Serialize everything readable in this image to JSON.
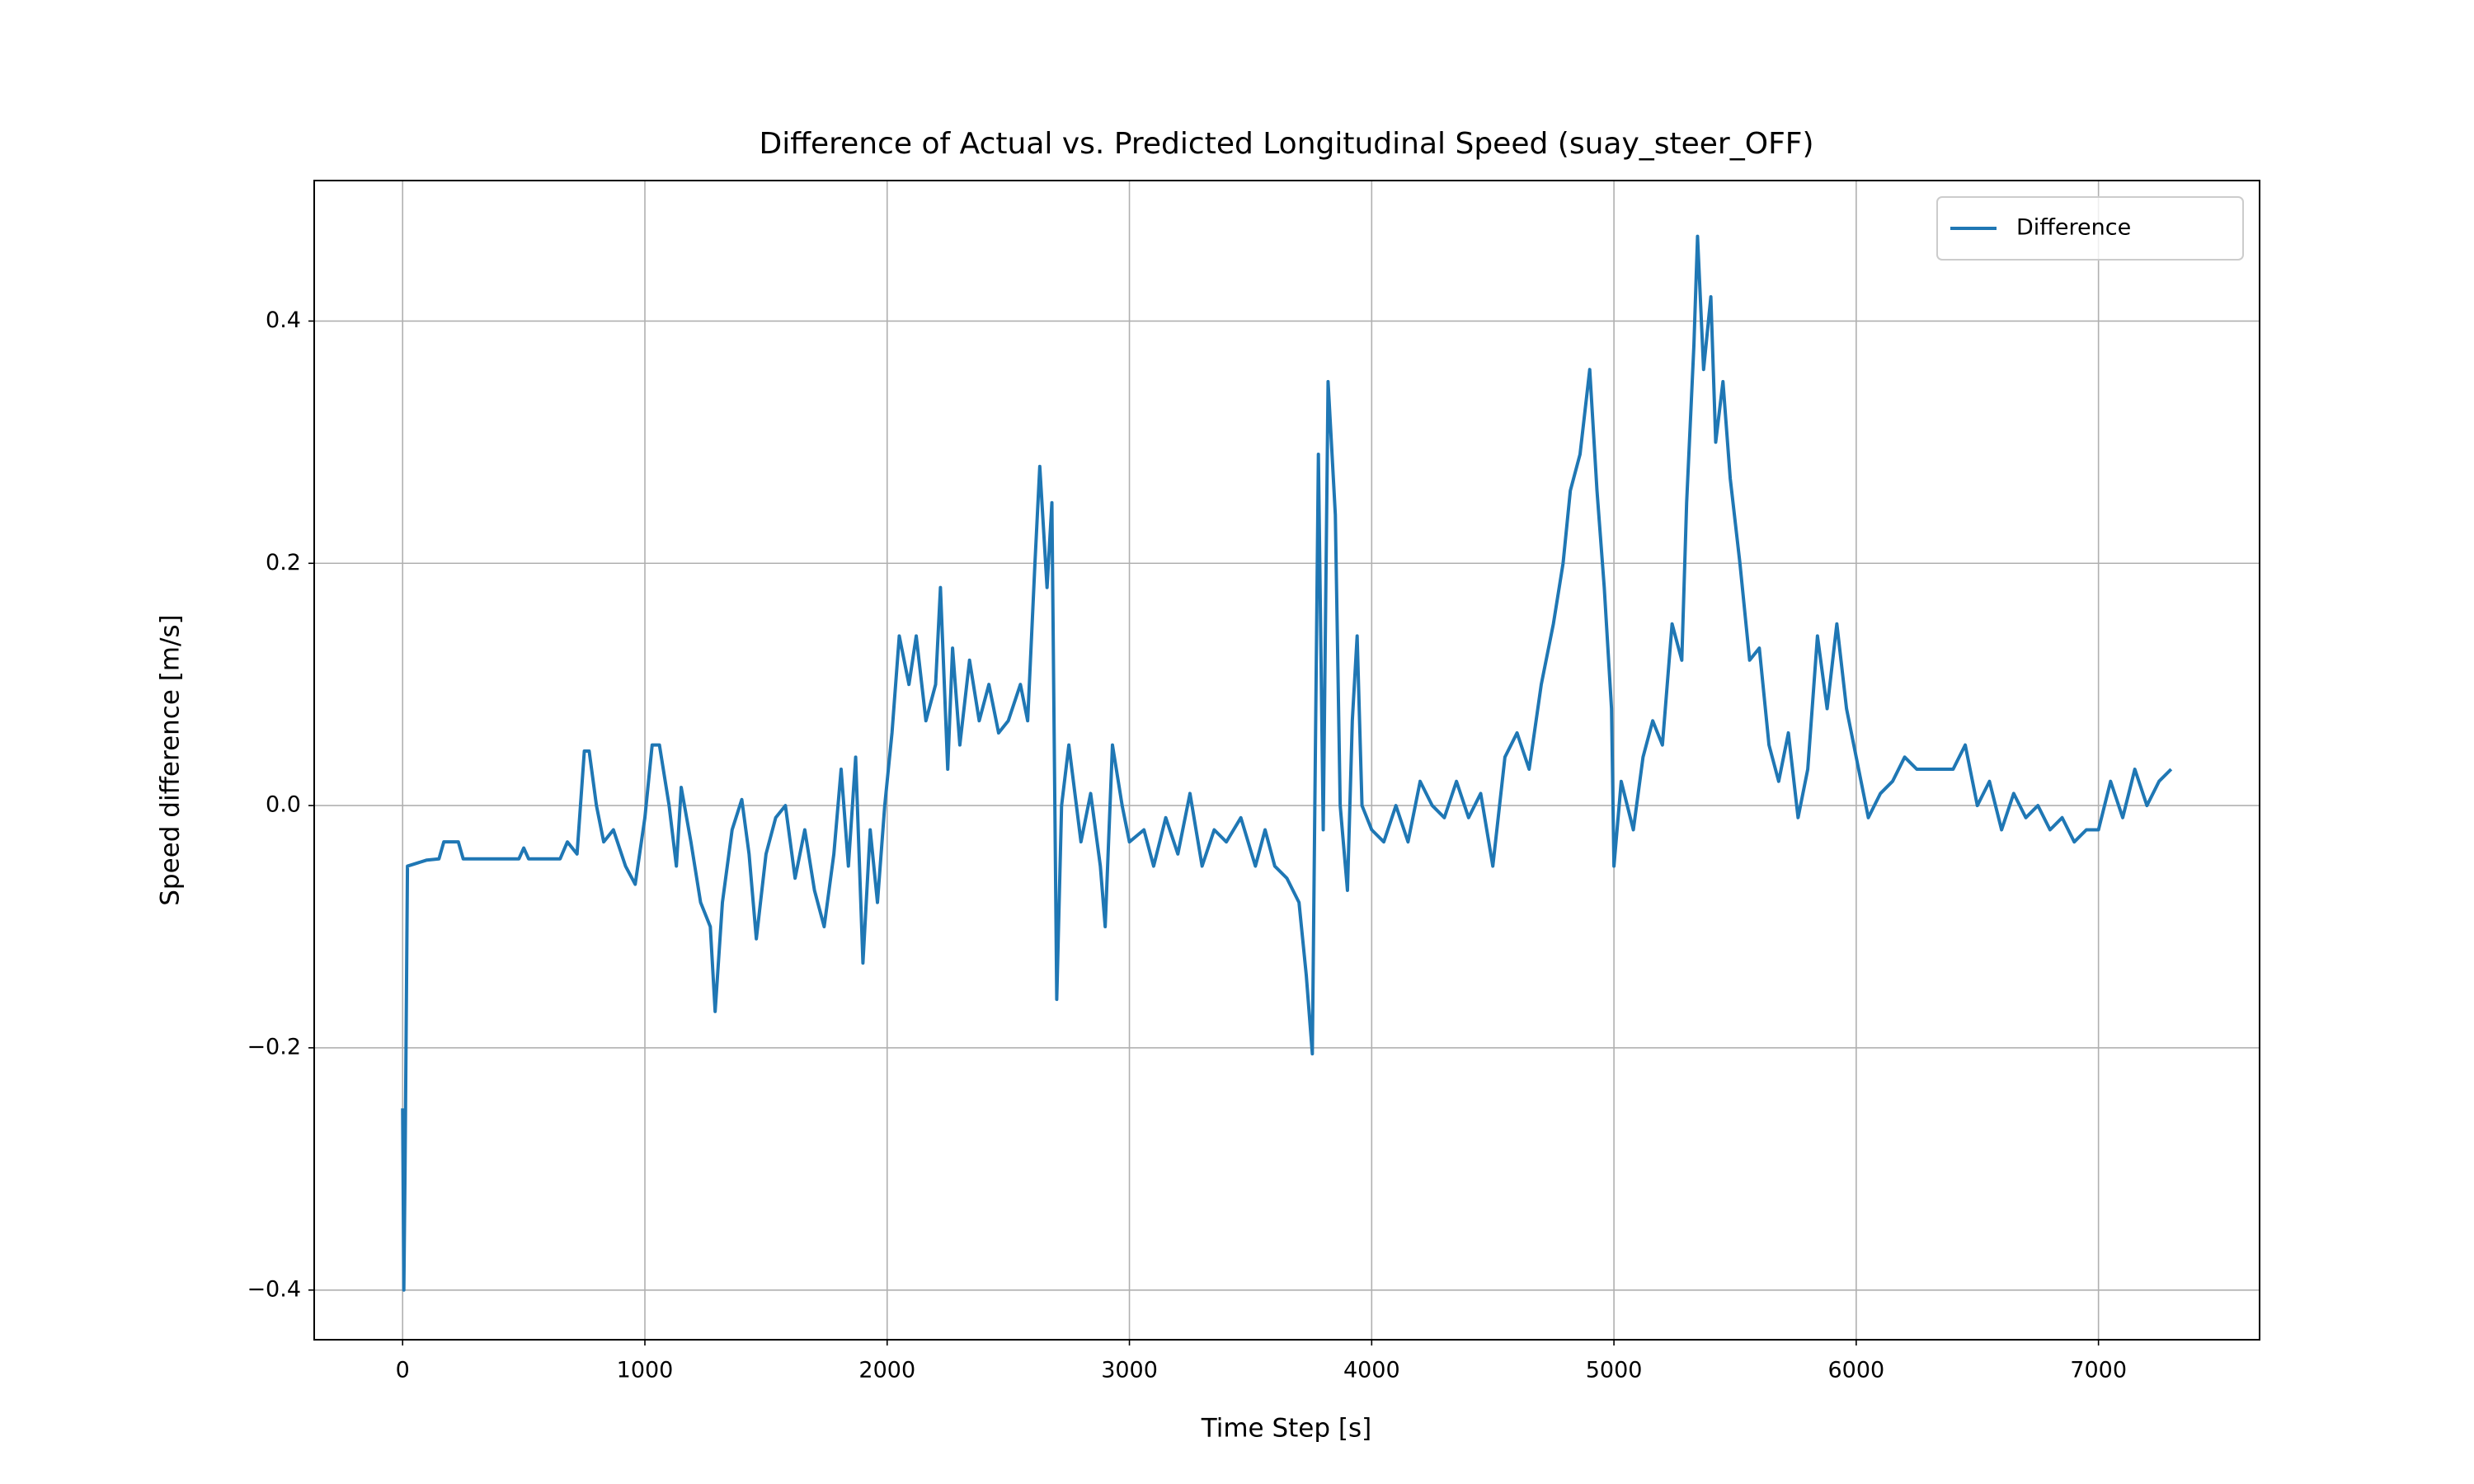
{
  "chart_data": {
    "type": "line",
    "title": "Difference of Actual vs. Predicted Longitudinal Speed (suay_steer_OFF)",
    "xlabel": "Time Step [s]",
    "ylabel": "Speed difference [m/s]",
    "xlim": [
      -365,
      7665
    ],
    "ylim": [
      -0.441,
      0.516
    ],
    "xticks": [
      0,
      1000,
      2000,
      3000,
      4000,
      5000,
      6000,
      7000
    ],
    "yticks": [
      {
        "value": -0.4,
        "label": "−0.4"
      },
      {
        "value": -0.2,
        "label": "−0.2"
      },
      {
        "value": 0,
        "label": "0.0"
      },
      0.2,
      0.4
    ],
    "grid": true,
    "legend": "upper right",
    "x": [
      0,
      5,
      10,
      20,
      100,
      150,
      170,
      230,
      250,
      480,
      500,
      520,
      650,
      680,
      720,
      750,
      770,
      800,
      830,
      870,
      920,
      960,
      1000,
      1030,
      1060,
      1100,
      1130,
      1150,
      1190,
      1230,
      1270,
      1290,
      1320,
      1360,
      1400,
      1430,
      1460,
      1500,
      1540,
      1580,
      1620,
      1660,
      1700,
      1740,
      1780,
      1810,
      1840,
      1870,
      1900,
      1930,
      1960,
      1990,
      2020,
      2050,
      2090,
      2120,
      2160,
      2200,
      2220,
      2250,
      2270,
      2300,
      2340,
      2380,
      2420,
      2460,
      2500,
      2550,
      2580,
      2610,
      2630,
      2660,
      2680,
      2700,
      2720,
      2750,
      2800,
      2840,
      2880,
      2900,
      2930,
      2970,
      3000,
      3060,
      3100,
      3150,
      3200,
      3250,
      3300,
      3350,
      3400,
      3460,
      3520,
      3560,
      3600,
      3650,
      3700,
      3730,
      3755,
      3780,
      3800,
      3820,
      3850,
      3870,
      3900,
      3920,
      3940,
      3960,
      4000,
      4050,
      4100,
      4150,
      4200,
      4250,
      4300,
      4350,
      4400,
      4450,
      4500,
      4550,
      4600,
      4650,
      4700,
      4750,
      4790,
      4820,
      4860,
      4900,
      4930,
      4960,
      4990,
      5000,
      5030,
      5080,
      5120,
      5160,
      5200,
      5240,
      5280,
      5300,
      5330,
      5345,
      5370,
      5400,
      5420,
      5450,
      5480,
      5520,
      5560,
      5600,
      5640,
      5680,
      5720,
      5760,
      5800,
      5840,
      5880,
      5920,
      5960,
      6000,
      6050,
      6100,
      6150,
      6200,
      6250,
      6300,
      6350,
      6400,
      6450,
      6500,
      6550,
      6600,
      6650,
      6700,
      6750,
      6800,
      6850,
      6900,
      6950,
      7000,
      7050,
      7100,
      7150,
      7200,
      7250,
      7300
    ],
    "series": [
      {
        "name": "Difference",
        "color": "#1f77b4",
        "values": [
          -0.25,
          -0.4,
          -0.3,
          -0.05,
          -0.045,
          -0.044,
          -0.03,
          -0.03,
          -0.044,
          -0.044,
          -0.035,
          -0.044,
          -0.044,
          -0.03,
          -0.04,
          0.045,
          0.045,
          0.0,
          -0.03,
          -0.02,
          -0.05,
          -0.065,
          -0.01,
          0.05,
          0.05,
          0.0,
          -0.05,
          0.015,
          -0.03,
          -0.08,
          -0.1,
          -0.17,
          -0.08,
          -0.02,
          0.005,
          -0.04,
          -0.11,
          -0.04,
          -0.01,
          0.0,
          -0.06,
          -0.02,
          -0.07,
          -0.1,
          -0.04,
          0.03,
          -0.05,
          0.04,
          -0.13,
          -0.02,
          -0.08,
          0.0,
          0.06,
          0.14,
          0.1,
          0.14,
          0.07,
          0.1,
          0.18,
          0.03,
          0.13,
          0.05,
          0.12,
          0.07,
          0.1,
          0.06,
          0.07,
          0.1,
          0.07,
          0.2,
          0.28,
          0.18,
          0.25,
          -0.16,
          0.0,
          0.05,
          -0.03,
          0.01,
          -0.05,
          -0.1,
          0.05,
          0.0,
          -0.03,
          -0.02,
          -0.05,
          -0.01,
          -0.04,
          0.01,
          -0.05,
          -0.02,
          -0.03,
          -0.01,
          -0.05,
          -0.02,
          -0.05,
          -0.06,
          -0.08,
          -0.14,
          -0.205,
          0.29,
          -0.02,
          0.35,
          0.24,
          0.0,
          -0.07,
          0.07,
          0.14,
          0.0,
          -0.02,
          -0.03,
          0.0,
          -0.03,
          0.02,
          0.0,
          -0.01,
          0.02,
          -0.01,
          0.01,
          -0.05,
          0.04,
          0.06,
          0.03,
          0.1,
          0.15,
          0.2,
          0.26,
          0.29,
          0.36,
          0.26,
          0.18,
          0.08,
          -0.05,
          0.02,
          -0.02,
          0.04,
          0.07,
          0.05,
          0.15,
          0.12,
          0.25,
          0.38,
          0.47,
          0.36,
          0.42,
          0.3,
          0.35,
          0.27,
          0.2,
          0.12,
          0.13,
          0.05,
          0.02,
          0.06,
          -0.01,
          0.03,
          0.14,
          0.08,
          0.15,
          0.08,
          0.04,
          -0.01,
          0.01,
          0.02,
          0.04,
          0.03,
          0.03,
          0.03,
          0.03,
          0.05,
          0.0,
          0.02,
          -0.02,
          0.01,
          -0.01,
          0.0,
          -0.02,
          -0.01,
          -0.03,
          -0.02,
          -0.02,
          0.02,
          -0.01,
          0.03,
          0.0,
          0.02,
          0.03
        ]
      }
    ]
  }
}
